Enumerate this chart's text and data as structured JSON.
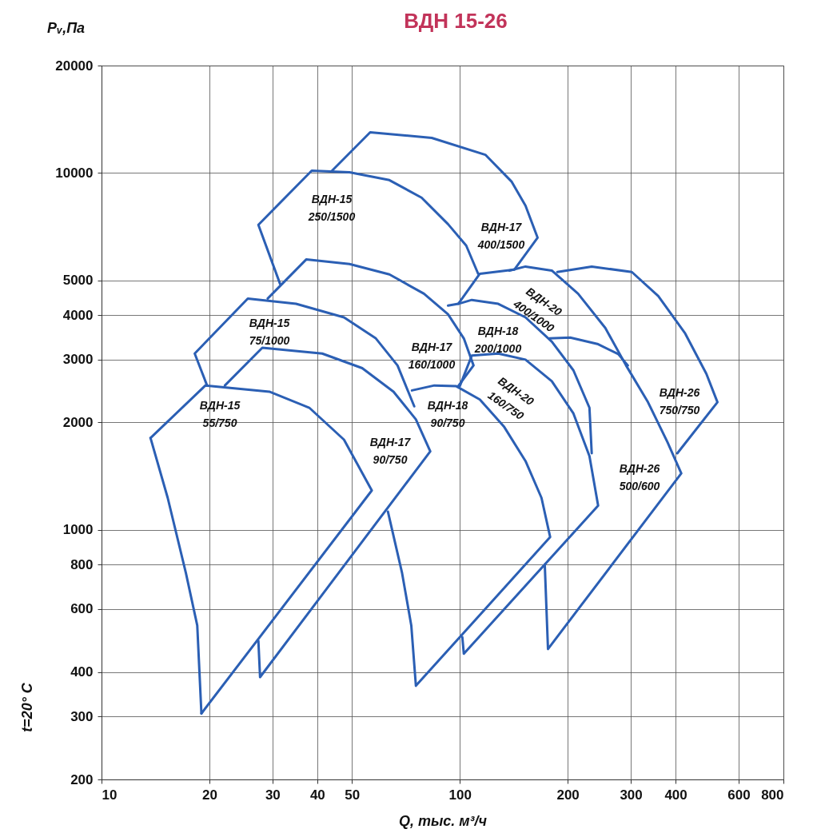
{
  "chart_data": {
    "type": "line",
    "title": "ВДН 15-26",
    "xlabel": "Q, тыс. м³/ч",
    "ylabel": "Pᵥ,Па",
    "log": "xy",
    "grid": true,
    "marker": "none",
    "line_style": "solid",
    "xlim": [
      10,
      800
    ],
    "xticks": [
      10,
      20,
      30,
      40,
      50,
      100,
      200,
      300,
      400,
      600,
      800
    ],
    "ylim": [
      200,
      20000
    ],
    "yticks": [
      200,
      300,
      400,
      600,
      800,
      1000,
      2000,
      3000,
      4000,
      5000,
      10000,
      20000
    ],
    "series": [
      {
        "color": "#2b5fb4",
        "x": [
          13.7,
          19.5,
          29.4,
          38.0,
          47.5,
          56.8,
          19.0
        ],
        "values": [
          1810,
          2540,
          2440,
          2200,
          1790,
          1290,
          306
        ]
      },
      {
        "color": "#2b5fb4",
        "x": [
          19.0,
          18.5,
          17.2,
          15.3,
          13.7
        ],
        "values": [
          306,
          540,
          757,
          1230,
          1810
        ]
      },
      {
        "color": "#2b5fb4",
        "x": [
          22.1,
          28.1,
          41.3,
          53.4,
          65.3,
          75.4,
          82.7,
          27.7,
          27.4
        ],
        "values": [
          2540,
          3240,
          3120,
          2840,
          2440,
          2040,
          1660,
          387,
          489
        ]
      },
      {
        "color": "#2b5fb4",
        "x": [
          19.7,
          18.2,
          25.6,
          34.9,
          47.5,
          58.3,
          67.0,
          74.6
        ],
        "values": [
          2540,
          3120,
          4450,
          4300,
          3940,
          3440,
          2890,
          2220
        ]
      },
      {
        "color": "#2b5fb4",
        "x": [
          31.5,
          27.4,
          38.6,
          49.2,
          63.6,
          78.2,
          92.7,
          104.2,
          112.5
        ],
        "values": [
          4890,
          7160,
          10150,
          10050,
          9550,
          8530,
          7190,
          6260,
          5220
        ]
      },
      {
        "color": "#2b5fb4",
        "x": [
          44.0,
          56.2,
          83.5,
          117.8,
          139.6,
          152.5,
          164.8,
          141.9,
          113.7,
          99.0
        ],
        "values": [
          10150,
          13000,
          12540,
          11250,
          9450,
          8100,
          6590,
          5360,
          5220,
          4300
        ]
      },
      {
        "color": "#2b5fb4",
        "x": [
          29.1,
          37.3,
          49.2,
          63.6,
          79.4,
          92.7,
          102.6,
          109.2,
          99.0
        ],
        "values": [
          4450,
          5730,
          5560,
          5200,
          4590,
          4020,
          3440,
          2890,
          2530
        ]
      },
      {
        "color": "#2b5fb4",
        "x": [
          73.5,
          84.9,
          97.5,
          113.7,
          132.7,
          152.5,
          169,
          178.7,
          75.4,
          73.2,
          69.0,
          63.0
        ],
        "values": [
          2460,
          2540,
          2530,
          2320,
          1950,
          1560,
          1230,
          955,
          366,
          540,
          757,
          1125
        ]
      },
      {
        "color": "#2b5fb4",
        "x": [
          92.7,
          99.0,
          108,
          128,
          152.5,
          180.6,
          207.5,
          230,
          233.4
        ],
        "values": [
          4250,
          4300,
          4410,
          4300,
          3940,
          3370,
          2800,
          2200,
          1640
        ]
      },
      {
        "color": "#2b5fb4",
        "x": [
          100,
          108,
          128,
          152.5,
          180.6,
          207.5,
          230,
          243.2,
          102.6,
          101.6
        ],
        "values": [
          2530,
          3080,
          3120,
          3000,
          2610,
          2120,
          1610,
          1170,
          450,
          501
        ]
      },
      {
        "color": "#2b5fb4",
        "x": [
          137.4,
          152.5,
          180.6,
          213.8,
          254.7,
          291,
          335,
          380,
          415,
          176.2,
          172.6
        ],
        "values": [
          5330,
          5470,
          5330,
          4590,
          3680,
          2890,
          2280,
          1760,
          1440,
          464,
          801
        ]
      },
      {
        "color": "#2b5fb4",
        "x": [
          177.8,
          203.2,
          242,
          276.7,
          294.4
        ],
        "values": [
          3440,
          3460,
          3320,
          3110,
          2890
        ]
      },
      {
        "color": "#2b5fb4",
        "x": [
          187.1,
          233.4,
          302,
          358,
          425.6,
          487.5,
          523.6,
          404.6
        ],
        "values": [
          5280,
          5470,
          5280,
          4520,
          3550,
          2740,
          2280,
          1640
        ]
      }
    ],
    "annotations": [
      "ВДН-15\n250/1500",
      "ВДН-17\n400/1500",
      "ВДН-15\n75/1000",
      "ВДН-20\n400/1000",
      "ВДН-18\n200/1000",
      "ВДН-17\n160/1000",
      "ВДН-20\n160/750",
      "ВДН-26\n750/750",
      "ВДН-15\n55/750",
      "ВДН-18\n90/750",
      "ВДН-17\n90/750",
      "ВДН-26\n500/600",
      "t=20°  C"
    ]
  }
}
